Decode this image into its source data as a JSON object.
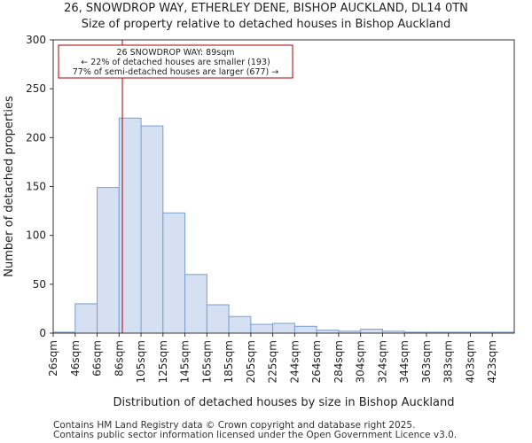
{
  "chart_data": {
    "type": "bar",
    "title": "26, SNOWDROP WAY, ETHERLEY DENE, BISHOP AUCKLAND, DL14 0TN",
    "subtitle": "Size of property relative to detached houses in Bishop Auckland",
    "xlabel": "Distribution of detached houses by size in Bishop Auckland",
    "ylabel": "Number of detached properties",
    "categories": [
      "26sqm",
      "46sqm",
      "66sqm",
      "86sqm",
      "105sqm",
      "125sqm",
      "145sqm",
      "165sqm",
      "185sqm",
      "205sqm",
      "225sqm",
      "244sqm",
      "264sqm",
      "284sqm",
      "304sqm",
      "324sqm",
      "344sqm",
      "363sqm",
      "383sqm",
      "403sqm",
      "423sqm"
    ],
    "values": [
      1,
      30,
      149,
      220,
      212,
      123,
      60,
      29,
      17,
      9,
      10,
      7,
      3,
      2,
      4,
      2,
      1,
      1,
      1,
      1,
      1
    ],
    "ylim": [
      0,
      300
    ],
    "yticks": [
      0,
      50,
      100,
      150,
      200,
      250,
      300
    ],
    "property_marker": {
      "position_index": 3.15,
      "color": "#aa0000",
      "annotation": [
        "26 SNOWDROP WAY: 89sqm",
        "← 22% of detached houses are smaller (193)",
        "77% of semi-detached houses are larger (677) →"
      ]
    },
    "bar_fill": "#d6e0f3",
    "bar_edge": "#7a9ecb"
  },
  "footer": {
    "line1": "Contains HM Land Registry data © Crown copyright and database right 2025.",
    "line2": "Contains public sector information licensed under the Open Government Licence v3.0."
  }
}
